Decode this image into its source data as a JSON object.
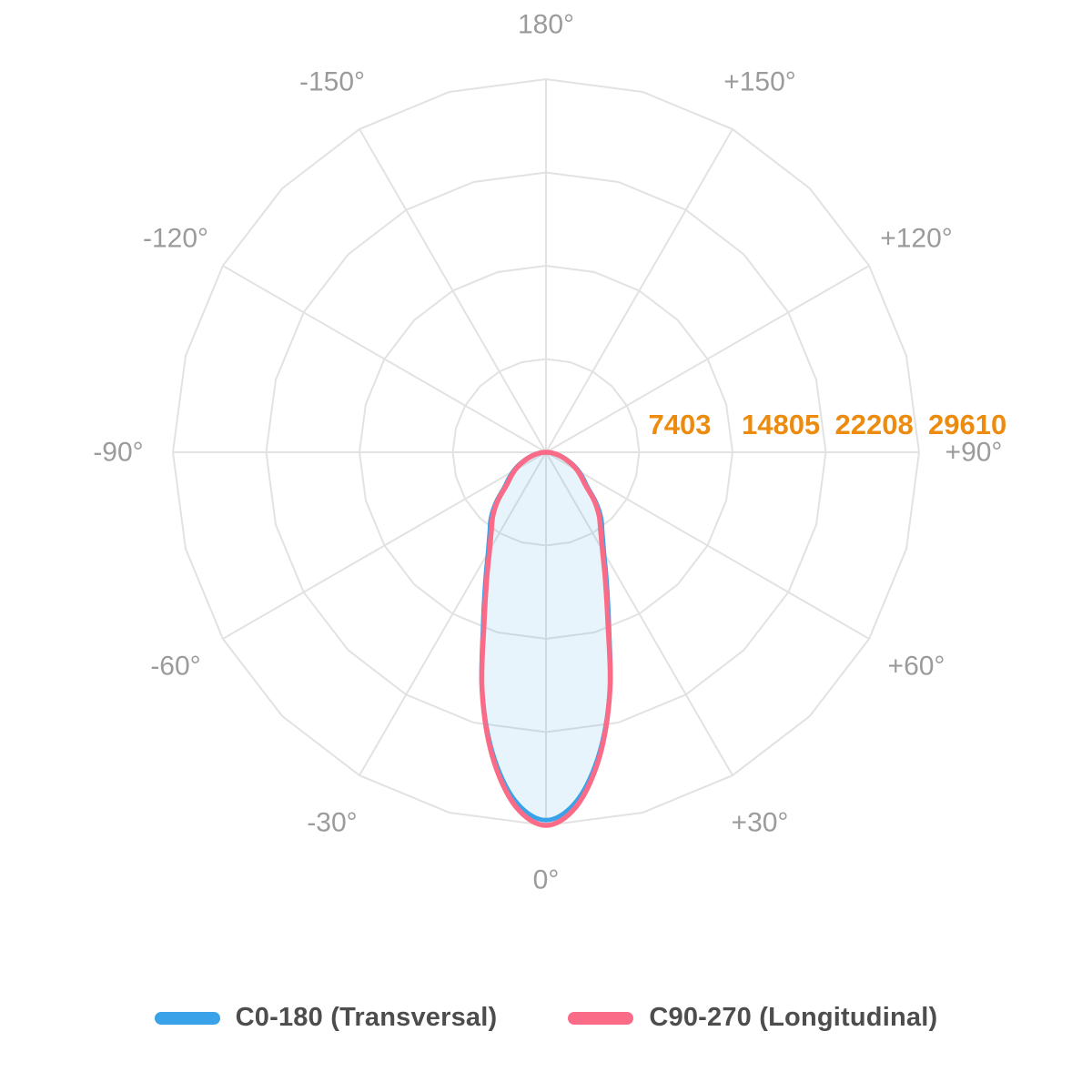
{
  "chart_data": {
    "type": "line",
    "subtype": "polar-photometric-distribution",
    "title": "",
    "orientation": "0 degrees at bottom, 180 degrees at top",
    "angle_labels": [
      {
        "deg": 0,
        "label": "0°"
      },
      {
        "deg": 30,
        "label": "+30°"
      },
      {
        "deg": 60,
        "label": "+60°"
      },
      {
        "deg": 90,
        "label": "+90°"
      },
      {
        "deg": 120,
        "label": "+120°"
      },
      {
        "deg": 150,
        "label": "+150°"
      },
      {
        "deg": 180,
        "label": "180°"
      },
      {
        "deg": 210,
        "label": "-150°"
      },
      {
        "deg": 240,
        "label": "-120°"
      },
      {
        "deg": 270,
        "label": "-90°"
      },
      {
        "deg": 300,
        "label": "-60°"
      },
      {
        "deg": 330,
        "label": "-30°"
      }
    ],
    "radial_ticks": [
      {
        "value": 7403,
        "label": "7403"
      },
      {
        "value": 14805,
        "label": "14805"
      },
      {
        "value": 22208,
        "label": "22208"
      },
      {
        "value": 29610,
        "label": "29610"
      }
    ],
    "radial_max": 29610,
    "grid": {
      "rings": 4,
      "ring_vertex_step_deg": 15,
      "spoke_step_deg": 30,
      "color": "#e2e2e2",
      "line_width": 2
    },
    "colors": {
      "angle_label": "#9b9b9b",
      "tick_label": "#ec8b0e",
      "legend_text": "#4d4d4d"
    },
    "series": [
      {
        "name": "C0-180 (Transversal)",
        "color": "#3aa2e9",
        "fill": "rgba(58,162,233,0.12)",
        "stroke_width": 5,
        "angles_deg": [
          -90,
          -85,
          -80,
          -75,
          -70,
          -65,
          -60,
          -55,
          -50,
          -45,
          -40,
          -35,
          -30,
          -25,
          -20,
          -15,
          -10,
          -5,
          0,
          5,
          10,
          15,
          20,
          25,
          30,
          35,
          40,
          45,
          50,
          55,
          60,
          65,
          70,
          75,
          80,
          85,
          90
        ],
        "values": [
          100,
          400,
          800,
          1300,
          1800,
          2400,
          3000,
          3600,
          4300,
          5600,
          6800,
          7800,
          9200,
          11400,
          14600,
          19600,
          24300,
          27800,
          29200,
          27800,
          24300,
          19600,
          14600,
          11400,
          9200,
          7800,
          6800,
          5600,
          4300,
          3600,
          3000,
          2400,
          1800,
          1300,
          800,
          400,
          100
        ]
      },
      {
        "name": "C90-270 (Longitudinal)",
        "color": "#fa6b88",
        "fill": "none",
        "stroke_width": 5.5,
        "angles_deg": [
          -90,
          -85,
          -80,
          -75,
          -70,
          -65,
          -60,
          -55,
          -50,
          -45,
          -40,
          -35,
          -30,
          -25,
          -20,
          -15,
          -10,
          -5,
          0,
          5,
          10,
          15,
          20,
          25,
          30,
          35,
          40,
          45,
          50,
          55,
          60,
          65,
          70,
          75,
          80,
          85,
          90
        ],
        "values": [
          80,
          370,
          750,
          1220,
          1700,
          2270,
          2860,
          3430,
          4120,
          5400,
          6550,
          7550,
          8950,
          11150,
          14350,
          19600,
          24500,
          28150,
          29610,
          28150,
          24500,
          19600,
          14350,
          11150,
          8950,
          7550,
          6550,
          5400,
          4120,
          3430,
          2860,
          2270,
          1700,
          1220,
          750,
          370,
          80
        ]
      }
    ]
  },
  "legend": {
    "items": [
      {
        "label": "C0-180 (Transversal)",
        "color": "#3aa2e9"
      },
      {
        "label": "C90-270 (Longitudinal)",
        "color": "#fa6b88"
      }
    ]
  }
}
